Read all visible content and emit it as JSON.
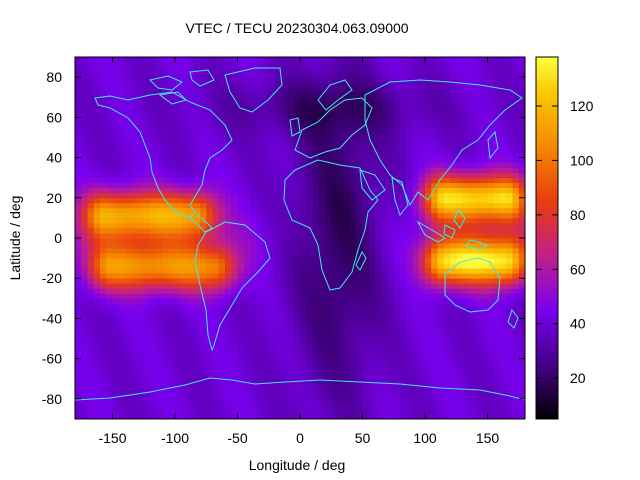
{
  "chart_data": {
    "type": "heatmap",
    "title": "VTEC / TECU 20230304.063.09000",
    "xlabel": "Longitude / deg",
    "ylabel": "Latitude / deg",
    "xlim": [
      -180,
      180
    ],
    "ylim": [
      -90,
      90
    ],
    "x_ticks": [
      -150,
      -100,
      -50,
      0,
      50,
      100,
      150
    ],
    "y_ticks": [
      -80,
      -60,
      -40,
      -20,
      0,
      20,
      40,
      60,
      80
    ],
    "colorbar": {
      "range": [
        5,
        138
      ],
      "ticks": [
        20,
        40,
        60,
        80,
        100,
        120
      ],
      "palette": [
        "#000000",
        "#3a0070",
        "#7a00f0",
        "#c0208a",
        "#e83c10",
        "#f58800",
        "#fac800",
        "#ffff40"
      ]
    },
    "coastline_color": "#40e8e8",
    "features": {
      "equatorial_anomaly_crests": [
        {
          "lon": [
            -180,
            -60
          ],
          "lat": 12,
          "value": 105
        },
        {
          "lon": [
            -180,
            -40
          ],
          "lat": -15,
          "value": 100
        },
        {
          "lon": [
            100,
            180
          ],
          "lat": 20,
          "value": 125
        },
        {
          "lon": [
            100,
            180
          ],
          "lat": -12,
          "value": 125
        }
      ],
      "background_value": 40,
      "night_trough_lon": 30,
      "night_trough_value": 15
    }
  }
}
